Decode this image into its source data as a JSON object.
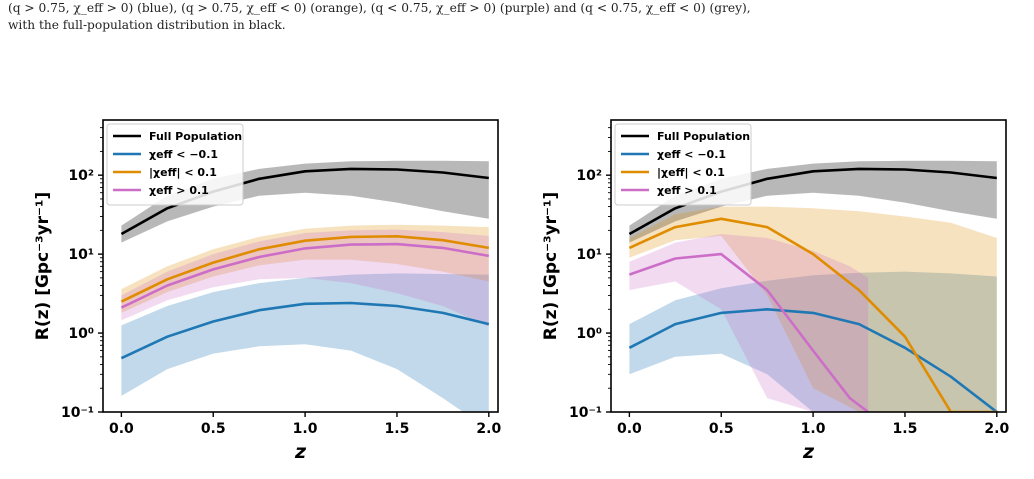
{
  "caption": {
    "line1": "(q > 0.75, χ_eff > 0) (blue), (q > 0.75, χ_eff < 0) (orange), (q < 0.75, χ_eff > 0) (purple) and (q < 0.75, χ_eff < 0) (grey),",
    "line2": "with the full-population distribution in black."
  },
  "chart_data": [
    {
      "type": "line",
      "xlabel": "z",
      "ylabel": "R(z) [Gpc⁻³yr⁻¹]",
      "xlim": [
        -0.1,
        2.05
      ],
      "ylim": [
        0.1,
        500
      ],
      "yscale": "log",
      "xticks": [
        "0.0",
        "0.5",
        "1.0",
        "1.5",
        "2.0"
      ],
      "yticks": [
        "10⁻¹",
        "10⁰",
        "10¹",
        "10²"
      ],
      "legend_position": "top-left",
      "series": [
        {
          "name": "Full Population",
          "color": "#000000",
          "x": [
            0,
            0.25,
            0.5,
            0.75,
            1.0,
            1.25,
            1.5,
            1.75,
            2.0
          ],
          "y": [
            18,
            38,
            62,
            90,
            112,
            120,
            118,
            108,
            92
          ],
          "lower": [
            14,
            26,
            40,
            55,
            60,
            55,
            45,
            35,
            28
          ],
          "upper": [
            23,
            55,
            90,
            120,
            140,
            150,
            152,
            152,
            150
          ]
        },
        {
          "name": "χeff < −0.1",
          "color": "#1f77b4",
          "x": [
            0,
            0.25,
            0.5,
            0.75,
            1.0,
            1.25,
            1.5,
            1.75,
            2.0
          ],
          "y": [
            0.48,
            0.9,
            1.4,
            1.95,
            2.35,
            2.4,
            2.2,
            1.8,
            1.3
          ],
          "lower": [
            0.16,
            0.35,
            0.55,
            0.68,
            0.72,
            0.6,
            0.35,
            0.15,
            0.06
          ],
          "upper": [
            1.25,
            2.2,
            3.3,
            4.3,
            5.0,
            5.5,
            5.7,
            5.6,
            5.5
          ]
        },
        {
          "name": "|χeff| < 0.1",
          "color": "#e08c00",
          "x": [
            0,
            0.25,
            0.5,
            0.75,
            1.0,
            1.25,
            1.5,
            1.75,
            2.0
          ],
          "y": [
            2.5,
            4.8,
            7.8,
            11.5,
            14.8,
            16.5,
            16.8,
            15.0,
            12.0
          ],
          "lower": [
            1.8,
            3.3,
            5.2,
            7.2,
            8.5,
            8.5,
            7.5,
            6.0,
            4.5
          ],
          "upper": [
            3.6,
            7.0,
            11.5,
            16.5,
            21,
            23,
            23.5,
            23,
            22
          ]
        },
        {
          "name": "χeff > 0.1",
          "color": "#cc6ec8",
          "x": [
            0,
            0.25,
            0.5,
            0.75,
            1.0,
            1.25,
            1.5,
            1.75,
            2.0
          ],
          "y": [
            2.1,
            4.0,
            6.4,
            9.2,
            11.8,
            13.2,
            13.4,
            12.0,
            9.5
          ],
          "lower": [
            1.45,
            2.6,
            3.8,
            4.8,
            5.0,
            4.3,
            3.2,
            2.2,
            1.2
          ],
          "upper": [
            3.0,
            6.0,
            10.0,
            14.5,
            18.5,
            20,
            20.5,
            19,
            17
          ]
        }
      ]
    },
    {
      "type": "line",
      "xlabel": "z",
      "ylabel": "R(z) [Gpc⁻³yr⁻¹]",
      "xlim": [
        -0.1,
        2.05
      ],
      "ylim": [
        0.1,
        500
      ],
      "yscale": "log",
      "xticks": [
        "0.0",
        "0.5",
        "1.0",
        "1.5",
        "2.0"
      ],
      "yticks": [
        "10⁻¹",
        "10⁰",
        "10¹",
        "10²"
      ],
      "legend_position": "top-left",
      "series": [
        {
          "name": "Full Population",
          "color": "#000000",
          "x": [
            0,
            0.25,
            0.5,
            0.75,
            1.0,
            1.25,
            1.5,
            1.75,
            2.0
          ],
          "y": [
            18,
            38,
            62,
            90,
            112,
            120,
            118,
            108,
            92
          ],
          "lower": [
            14,
            26,
            40,
            55,
            60,
            55,
            45,
            35,
            28
          ],
          "upper": [
            23,
            55,
            90,
            120,
            140,
            150,
            152,
            152,
            150
          ]
        },
        {
          "name": "χeff < −0.1",
          "color": "#1f77b4",
          "x": [
            0,
            0.25,
            0.5,
            0.75,
            1.0,
            1.25,
            1.5,
            1.75,
            2.0
          ],
          "y": [
            0.65,
            1.3,
            1.8,
            2.0,
            1.8,
            1.3,
            0.65,
            0.28,
            0.1
          ],
          "lower": [
            0.3,
            0.5,
            0.55,
            0.3,
            0.1,
            0.1,
            0.1,
            0.1,
            0.1
          ],
          "upper": [
            1.3,
            2.6,
            3.7,
            4.6,
            5.4,
            5.8,
            6.0,
            5.7,
            5.2
          ]
        },
        {
          "name": "|χeff| < 0.1",
          "color": "#e08c00",
          "x": [
            0,
            0.25,
            0.5,
            0.75,
            1.0,
            1.25,
            1.5,
            1.75,
            2.0
          ],
          "y": [
            12,
            22,
            28,
            22,
            10,
            3.5,
            0.9,
            0.1,
            0.1
          ],
          "lower": [
            9,
            15,
            17,
            3,
            0.2,
            0.1,
            0.1,
            0.1,
            0.1
          ],
          "upper": [
            16,
            32,
            40,
            40,
            38,
            35,
            30,
            25,
            16
          ]
        },
        {
          "name": "χeff > 0.1",
          "color": "#cc6ec8",
          "x": [
            0,
            0.25,
            0.5,
            0.75,
            1.0,
            1.2,
            1.3
          ],
          "y": [
            5.5,
            8.8,
            10,
            3.5,
            0.6,
            0.15,
            0.1
          ],
          "lower": [
            3.5,
            4.5,
            2.0,
            0.15,
            0.1,
            0.1,
            0.1
          ],
          "upper": [
            8,
            14,
            18,
            16,
            11,
            7,
            5
          ]
        }
      ]
    }
  ]
}
